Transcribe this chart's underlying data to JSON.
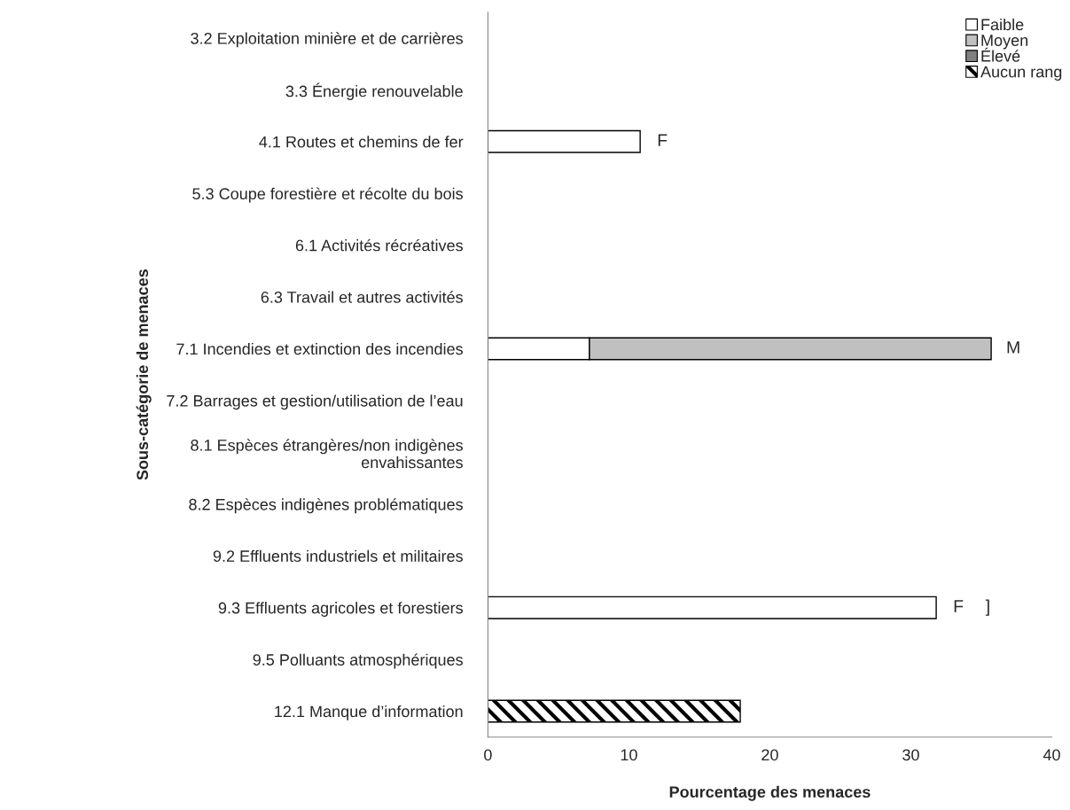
{
  "chart_data": {
    "type": "bar",
    "orientation": "horizontal",
    "stacked": true,
    "xlabel": "Pourcentage des menaces",
    "ylabel": "Sous-catégorie de menaces",
    "categories": [
      "3.2 Exploitation minière et de carrières",
      "3.3 Énergie renouvelable",
      "4.1 Routes et chemins de fer",
      "5.3 Coupe forestière et récolte du bois",
      "6.1 Activités récréatives",
      "6.3 Travail et autres activités",
      "7.1 Incendies et extinction des incendies",
      "7.2 Barrages et gestion/utilisation de l’eau",
      "8.1 Espèces étrangères/non indigènes\nenvahissantes",
      "8.2 Espèces indigènes problématiques",
      "9.2 Effluents industriels et militaires",
      "9.3 Effluents agricoles et forestiers",
      "9.5 Polluants atmosphériques",
      "12.1 Manque d’information"
    ],
    "series": [
      {
        "name": "Faible",
        "color": "#ffffff",
        "values": [
          null,
          null,
          10.8,
          null,
          null,
          null,
          7.2,
          null,
          null,
          null,
          null,
          31.8,
          null,
          null
        ],
        "value_labels": [
          null,
          null,
          "F",
          null,
          null,
          null,
          null,
          null,
          null,
          null,
          null,
          "F",
          null,
          null
        ]
      },
      {
        "name": "Moyen",
        "color": "#c0c0c0",
        "values": [
          null,
          null,
          null,
          null,
          null,
          null,
          28.5,
          null,
          null,
          null,
          null,
          null,
          null,
          null
        ],
        "value_labels": [
          null,
          null,
          null,
          null,
          null,
          null,
          "M",
          null,
          null,
          null,
          null,
          null,
          null,
          null
        ]
      },
      {
        "name": "Élevé",
        "color": "#808080",
        "values": [
          null,
          null,
          null,
          null,
          null,
          null,
          null,
          null,
          null,
          null,
          null,
          null,
          null,
          null
        ]
      },
      {
        "name": "Aucun rang",
        "color": "#000000",
        "values": [
          null,
          null,
          null,
          null,
          null,
          null,
          null,
          null,
          null,
          null,
          null,
          null,
          null,
          17.9
        ]
      }
    ],
    "xlim": [
      0,
      40
    ],
    "xticks": [
      0,
      10,
      20,
      30,
      40
    ],
    "grid": false,
    "legend": "top right",
    "annotations": [
      "]"
    ]
  }
}
